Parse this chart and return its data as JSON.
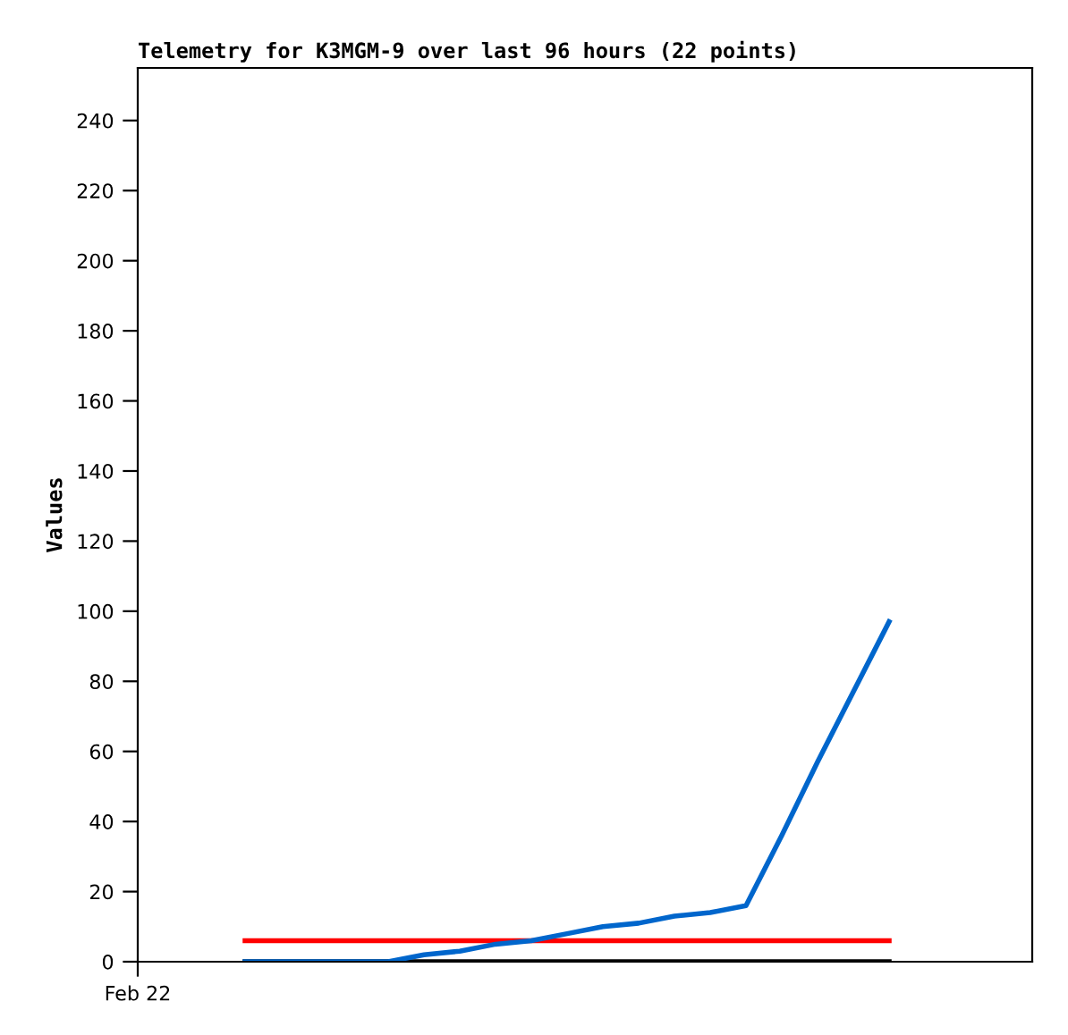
{
  "chart_data": {
    "type": "line",
    "title": "Telemetry for K3MGM-9 over last 96 hours (22 points)",
    "ylabel": "Values",
    "categories": [
      "Feb 22",
      null,
      null,
      null,
      null,
      null,
      null,
      null,
      null,
      null,
      null,
      null,
      null,
      null,
      null,
      null,
      null,
      null,
      null,
      null,
      null,
      null,
      null,
      null,
      null,
      null
    ],
    "ylim": [
      0,
      255
    ],
    "yticks": [
      0,
      20,
      40,
      60,
      80,
      100,
      120,
      140,
      160,
      180,
      200,
      220,
      240
    ],
    "series": [
      {
        "color": "#000000",
        "values": [
          null,
          null,
          null,
          0,
          0,
          0,
          0,
          0,
          0,
          0,
          0,
          0,
          0,
          0,
          0,
          0,
          0,
          0,
          0,
          0,
          0,
          0,
          null,
          null,
          null,
          null
        ]
      },
      {
        "color": "#ff0000",
        "values": [
          null,
          null,
          null,
          6,
          6,
          6,
          6,
          6,
          6,
          6,
          6,
          6,
          6,
          6,
          6,
          6,
          6,
          6,
          6,
          6,
          6,
          6,
          null,
          null,
          null,
          null
        ]
      },
      {
        "color": "#0066cc",
        "values": [
          null,
          null,
          null,
          0,
          0,
          0,
          0,
          0,
          2,
          3,
          5,
          6,
          8,
          10,
          11,
          13,
          14,
          16,
          36,
          57,
          77,
          97,
          null,
          null,
          null,
          null
        ]
      }
    ]
  }
}
